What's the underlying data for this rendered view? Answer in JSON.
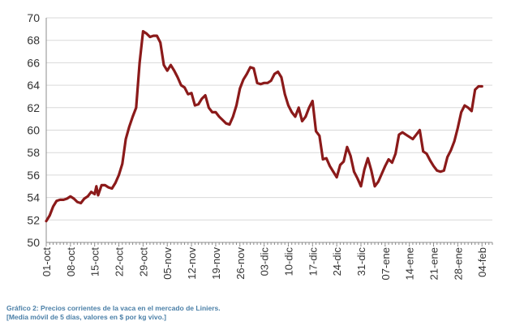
{
  "chart_data": {
    "type": "line",
    "title": "",
    "xlabel": "",
    "ylabel": "",
    "ylim": [
      50,
      70
    ],
    "yticks": [
      50,
      52,
      54,
      56,
      58,
      60,
      62,
      64,
      66,
      68,
      70
    ],
    "grid": "horizontal",
    "xlim": [
      0,
      129
    ],
    "x_ticks": [
      {
        "label": "01-oct",
        "day": 0
      },
      {
        "label": "08-oct",
        "day": 7
      },
      {
        "label": "15-oct",
        "day": 14
      },
      {
        "label": "22-oct",
        "day": 21
      },
      {
        "label": "29-oct",
        "day": 28
      },
      {
        "label": "05-nov",
        "day": 35
      },
      {
        "label": "12-nov",
        "day": 42
      },
      {
        "label": "19-nov",
        "day": 49
      },
      {
        "label": "26-nov",
        "day": 56
      },
      {
        "label": "03-dic",
        "day": 63
      },
      {
        "label": "10-dic",
        "day": 70
      },
      {
        "label": "17-dic",
        "day": 77
      },
      {
        "label": "24-dic",
        "day": 84
      },
      {
        "label": "31-dic",
        "day": 91
      },
      {
        "label": "07-ene",
        "day": 98
      },
      {
        "label": "14-ene",
        "day": 105
      },
      {
        "label": "21-ene",
        "day": 112
      },
      {
        "label": "28-ene",
        "day": 119
      },
      {
        "label": "04-feb",
        "day": 126
      }
    ],
    "series": [
      {
        "name": "Precio vaca Liniers",
        "color": "#8b1a1a",
        "points": [
          [
            0,
            51.9
          ],
          [
            1,
            52.4
          ],
          [
            2,
            53.2
          ],
          [
            3,
            53.7
          ],
          [
            4,
            53.8
          ],
          [
            5,
            53.8
          ],
          [
            6,
            53.9
          ],
          [
            7,
            54.1
          ],
          [
            8,
            53.9
          ],
          [
            9,
            53.6
          ],
          [
            10,
            53.5
          ],
          [
            11,
            53.9
          ],
          [
            12,
            54.1
          ],
          [
            13,
            54.5
          ],
          [
            14,
            54.3
          ],
          [
            14.5,
            55.0
          ],
          [
            15,
            54.2
          ],
          [
            16,
            55.1
          ],
          [
            17,
            55.1
          ],
          [
            18,
            54.9
          ],
          [
            19,
            54.8
          ],
          [
            20,
            55.3
          ],
          [
            21,
            56.0
          ],
          [
            22,
            57.0
          ],
          [
            23,
            59.2
          ],
          [
            24,
            60.3
          ],
          [
            25,
            61.2
          ],
          [
            26,
            62.0
          ],
          [
            27,
            66.0
          ],
          [
            28,
            68.8
          ],
          [
            29,
            68.6
          ],
          [
            30,
            68.3
          ],
          [
            31,
            68.4
          ],
          [
            32,
            68.4
          ],
          [
            33,
            67.8
          ],
          [
            34,
            65.8
          ],
          [
            35,
            65.3
          ],
          [
            36,
            65.8
          ],
          [
            37,
            65.3
          ],
          [
            38,
            64.7
          ],
          [
            39,
            64.0
          ],
          [
            40,
            63.8
          ],
          [
            41,
            63.2
          ],
          [
            42,
            63.3
          ],
          [
            43,
            62.2
          ],
          [
            44,
            62.3
          ],
          [
            45,
            62.8
          ],
          [
            46,
            63.1
          ],
          [
            47,
            62.0
          ],
          [
            48,
            61.6
          ],
          [
            49,
            61.6
          ],
          [
            50,
            61.2
          ],
          [
            51,
            60.9
          ],
          [
            52,
            60.6
          ],
          [
            53,
            60.5
          ],
          [
            54,
            61.2
          ],
          [
            55,
            62.2
          ],
          [
            56,
            63.7
          ],
          [
            57,
            64.5
          ],
          [
            58,
            65.0
          ],
          [
            59,
            65.6
          ],
          [
            60,
            65.5
          ],
          [
            61,
            64.2
          ],
          [
            62,
            64.1
          ],
          [
            63,
            64.2
          ],
          [
            64,
            64.2
          ],
          [
            65,
            64.4
          ],
          [
            66,
            65.0
          ],
          [
            67,
            65.2
          ],
          [
            68,
            64.7
          ],
          [
            69,
            63.2
          ],
          [
            70,
            62.2
          ],
          [
            71,
            61.6
          ],
          [
            72,
            61.2
          ],
          [
            73,
            62.0
          ],
          [
            74,
            60.8
          ],
          [
            75,
            61.2
          ],
          [
            76,
            62.0
          ],
          [
            77,
            62.6
          ],
          [
            78,
            59.9
          ],
          [
            79,
            59.5
          ],
          [
            80,
            57.4
          ],
          [
            81,
            57.5
          ],
          [
            82,
            56.8
          ],
          [
            83,
            56.3
          ],
          [
            84,
            55.8
          ],
          [
            85,
            56.9
          ],
          [
            86,
            57.2
          ],
          [
            87,
            58.5
          ],
          [
            88,
            57.7
          ],
          [
            89,
            56.3
          ],
          [
            90,
            55.7
          ],
          [
            91,
            55.0
          ],
          [
            92,
            56.5
          ],
          [
            93,
            57.5
          ],
          [
            94,
            56.4
          ],
          [
            95,
            55.0
          ],
          [
            96,
            55.4
          ],
          [
            97,
            56.1
          ],
          [
            98,
            56.8
          ],
          [
            99,
            57.4
          ],
          [
            100,
            57.1
          ],
          [
            101,
            57.9
          ],
          [
            102,
            59.6
          ],
          [
            103,
            59.8
          ],
          [
            104,
            59.6
          ],
          [
            105,
            59.4
          ],
          [
            106,
            59.2
          ],
          [
            107,
            59.6
          ],
          [
            108,
            60.0
          ],
          [
            109,
            58.1
          ],
          [
            110,
            57.9
          ],
          [
            111,
            57.3
          ],
          [
            112,
            56.8
          ],
          [
            113,
            56.4
          ],
          [
            114,
            56.3
          ],
          [
            115,
            56.4
          ],
          [
            116,
            57.6
          ],
          [
            117,
            58.2
          ],
          [
            118,
            59.0
          ],
          [
            119,
            60.2
          ],
          [
            120,
            61.6
          ],
          [
            121,
            62.2
          ],
          [
            122,
            62.0
          ],
          [
            123,
            61.7
          ],
          [
            124,
            63.6
          ],
          [
            125,
            63.9
          ],
          [
            126,
            63.9
          ]
        ]
      }
    ]
  },
  "caption": {
    "line1": "Gráfico 2: Precios corrientes de la vaca en el mercado de Liniers.",
    "line2": "[Media móvil de 5 días, valores en $ por kg vivo.]",
    "color": "#4a7fa7"
  }
}
